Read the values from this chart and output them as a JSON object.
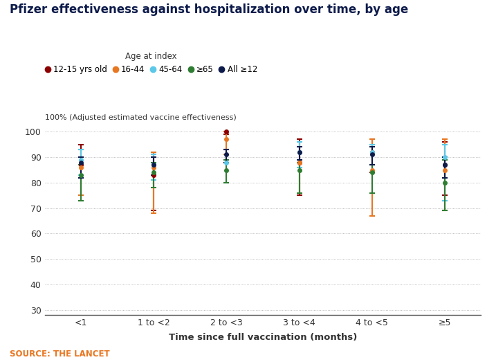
{
  "title": "Pfizer effectiveness against hospitalization over time, by age",
  "xlabel": "Time since full vaccination (months)",
  "ylabel_annotation": "100% (Adjusted estimated vaccine effectiveness)",
  "source": "SOURCE: THE LANCET",
  "legend_title": "Age at index",
  "x_labels": [
    "<1",
    "1 to <2",
    "2 to <3",
    "3 to <4",
    "4 to <5",
    "≥5"
  ],
  "series": [
    {
      "label": "12-15 yrs old",
      "color": "#8B0000",
      "y": [
        87,
        83,
        100,
        88,
        92,
        87
      ],
      "y_upper": [
        95,
        92,
        100,
        97,
        97,
        96
      ],
      "y_lower": [
        75,
        69,
        99,
        75,
        84,
        75
      ]
    },
    {
      "label": "16-44",
      "color": "#E87722",
      "y": [
        86,
        86,
        97,
        88,
        85,
        85
      ],
      "y_upper": [
        93,
        92,
        100,
        96,
        97,
        97
      ],
      "y_lower": [
        75,
        68,
        91,
        76,
        67,
        69
      ]
    },
    {
      "label": "45-64",
      "color": "#5BC8E8",
      "y": [
        89,
        87,
        88,
        92,
        92,
        90
      ],
      "y_upper": [
        93,
        91,
        93,
        96,
        95,
        95
      ],
      "y_lower": [
        83,
        81,
        80,
        86,
        87,
        73
      ]
    },
    {
      "label": "≥65",
      "color": "#2E7D32",
      "y": [
        83,
        84,
        85,
        85,
        84,
        80
      ],
      "y_upper": [
        87,
        88,
        89,
        88,
        87,
        89
      ],
      "y_lower": [
        73,
        78,
        80,
        76,
        76,
        69
      ]
    },
    {
      "label": "All ≥12",
      "color": "#0D1B4B",
      "y": [
        88,
        87,
        91,
        92,
        91,
        87
      ],
      "y_upper": [
        90,
        90,
        93,
        94,
        94,
        90
      ],
      "y_lower": [
        82,
        83,
        88,
        89,
        87,
        82
      ]
    }
  ],
  "ylim": [
    28,
    102
  ],
  "yticks": [
    30,
    40,
    50,
    60,
    70,
    80,
    90,
    100
  ],
  "bg_color": "#FFFFFF",
  "grid_color": "#AAAAAA",
  "title_color": "#0D1B4B",
  "source_color": "#E87722",
  "label_color": "#333333"
}
